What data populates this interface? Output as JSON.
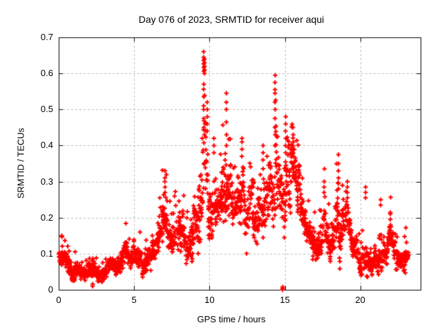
{
  "chart_data": {
    "type": "scatter",
    "title": "Day 076 of 2023, SRMTID for receiver aqui",
    "xlabel": "GPS time / hours",
    "ylabel": "SRMTID / TECUs",
    "xlim": [
      0,
      24
    ],
    "ylim": [
      0,
      0.7
    ],
    "xticks": [
      0,
      5,
      10,
      15,
      20
    ],
    "yticks": [
      0,
      0.1,
      0.2,
      0.3,
      0.4,
      0.5,
      0.6,
      0.7
    ],
    "grid": true,
    "legend": "none",
    "marker": "plus",
    "marker_color": "#ff0000",
    "grid_color": "#b8b8b8",
    "axis_color": "#000000",
    "x_start": 0.0,
    "x_end": 23.2,
    "epoch_step": 0.021,
    "seed": 76,
    "envelope": [
      [
        0.0,
        0.1,
        0.04
      ],
      [
        0.3,
        0.11,
        0.035
      ],
      [
        0.6,
        0.08,
        0.032
      ],
      [
        1.0,
        0.062,
        0.03
      ],
      [
        1.5,
        0.055,
        0.03
      ],
      [
        2.0,
        0.045,
        0.026
      ],
      [
        2.3,
        0.042,
        0.03
      ],
      [
        2.7,
        0.05,
        0.026
      ],
      [
        3.0,
        0.055,
        0.026
      ],
      [
        3.5,
        0.06,
        0.026
      ],
      [
        4.0,
        0.07,
        0.03
      ],
      [
        4.4,
        0.1,
        0.048
      ],
      [
        4.8,
        0.08,
        0.032
      ],
      [
        5.2,
        0.09,
        0.04
      ],
      [
        5.6,
        0.11,
        0.05
      ],
      [
        6.0,
        0.1,
        0.042
      ],
      [
        6.5,
        0.12,
        0.05
      ],
      [
        7.0,
        0.185,
        0.095
      ],
      [
        7.4,
        0.15,
        0.06
      ],
      [
        7.8,
        0.17,
        0.075
      ],
      [
        8.1,
        0.18,
        0.08
      ],
      [
        8.5,
        0.15,
        0.06
      ],
      [
        8.9,
        0.18,
        0.08
      ],
      [
        9.2,
        0.22,
        0.1
      ],
      [
        9.5,
        0.3,
        0.15
      ],
      [
        9.65,
        0.4,
        0.21
      ],
      [
        9.8,
        0.35,
        0.17
      ],
      [
        10.0,
        0.28,
        0.1
      ],
      [
        10.3,
        0.25,
        0.1
      ],
      [
        10.7,
        0.22,
        0.08
      ],
      [
        11.1,
        0.3,
        0.15
      ],
      [
        11.4,
        0.25,
        0.1
      ],
      [
        11.8,
        0.2,
        0.08
      ],
      [
        12.2,
        0.25,
        0.115
      ],
      [
        12.6,
        0.215,
        0.08
      ],
      [
        12.9,
        0.24,
        0.08
      ],
      [
        13.3,
        0.2,
        0.09
      ],
      [
        13.6,
        0.22,
        0.1
      ],
      [
        13.9,
        0.18,
        0.08
      ],
      [
        14.2,
        0.28,
        0.12
      ],
      [
        14.4,
        0.35,
        0.195
      ],
      [
        14.7,
        0.22,
        0.1
      ],
      [
        15.0,
        0.25,
        0.145
      ],
      [
        15.2,
        0.3,
        0.15
      ],
      [
        15.6,
        0.3,
        0.12
      ],
      [
        15.9,
        0.22,
        0.1
      ],
      [
        16.3,
        0.15,
        0.07
      ],
      [
        16.7,
        0.13,
        0.058
      ],
      [
        17.1,
        0.14,
        0.068
      ],
      [
        17.6,
        0.17,
        0.088
      ],
      [
        18.0,
        0.13,
        0.06
      ],
      [
        18.5,
        0.2,
        0.115
      ],
      [
        18.8,
        0.15,
        0.078
      ],
      [
        19.1,
        0.17,
        0.088
      ],
      [
        19.5,
        0.12,
        0.05
      ],
      [
        20.0,
        0.1,
        0.048
      ],
      [
        20.4,
        0.13,
        0.078
      ],
      [
        20.8,
        0.09,
        0.04
      ],
      [
        21.3,
        0.1,
        0.068
      ],
      [
        21.7,
        0.08,
        0.04
      ],
      [
        22.0,
        0.12,
        0.058
      ],
      [
        22.3,
        0.08,
        0.04
      ],
      [
        22.7,
        0.08,
        0.04
      ],
      [
        23.0,
        0.09,
        0.05
      ],
      [
        23.2,
        0.08,
        0.04
      ]
    ],
    "spikes": [
      [
        9.62,
        [
          0.66,
          0.645,
          0.636,
          0.626,
          0.616,
          0.606,
          0.57,
          0.556,
          0.535,
          0.51,
          0.5,
          0.475,
          0.45
        ]
      ],
      [
        9.67,
        [
          0.64,
          0.63,
          0.62,
          0.61,
          0.6
        ]
      ],
      [
        9.85,
        [
          0.52,
          0.5,
          0.48,
          0.46,
          0.44
        ]
      ],
      [
        11.12,
        [
          0.545,
          0.52,
          0.5,
          0.465,
          0.43,
          0.4
        ]
      ],
      [
        14.35,
        [
          0.595,
          0.575,
          0.555,
          0.545,
          0.52,
          0.5,
          0.475,
          0.45,
          0.43,
          0.4
        ]
      ],
      [
        15.05,
        [
          0.48,
          0.46,
          0.44,
          0.42,
          0.4,
          0.38,
          0.355,
          0.33
        ]
      ],
      [
        15.55,
        [
          0.45,
          0.43,
          0.41,
          0.39,
          0.37
        ]
      ],
      [
        12.15,
        [
          0.42,
          0.41,
          0.39,
          0.37
        ]
      ],
      [
        10.3,
        [
          0.42,
          0.4,
          0.38
        ]
      ],
      [
        13.55,
        [
          0.4,
          0.38,
          0.36
        ]
      ],
      [
        7.05,
        [
          0.33,
          0.31,
          0.3,
          0.285,
          0.27
        ]
      ],
      [
        18.55,
        [
          0.375,
          0.35,
          0.33,
          0.31,
          0.295,
          0.28
        ]
      ],
      [
        19.15,
        [
          0.3,
          0.285,
          0.27,
          0.255
        ]
      ],
      [
        17.6,
        [
          0.3,
          0.285,
          0.27
        ]
      ],
      [
        20.35,
        [
          0.285,
          0.27,
          0.255
        ]
      ],
      [
        21.35,
        [
          0.25,
          0.235
        ]
      ],
      [
        22.0,
        [
          0.21,
          0.195,
          0.18,
          0.165
        ]
      ],
      [
        12.9,
        [
          0.305,
          0.295,
          0.285
        ]
      ],
      [
        14.85,
        [
          0.0,
          0.004,
          0.008
        ]
      ],
      [
        2.25,
        [
          0.01,
          0.016
        ]
      ]
    ]
  }
}
